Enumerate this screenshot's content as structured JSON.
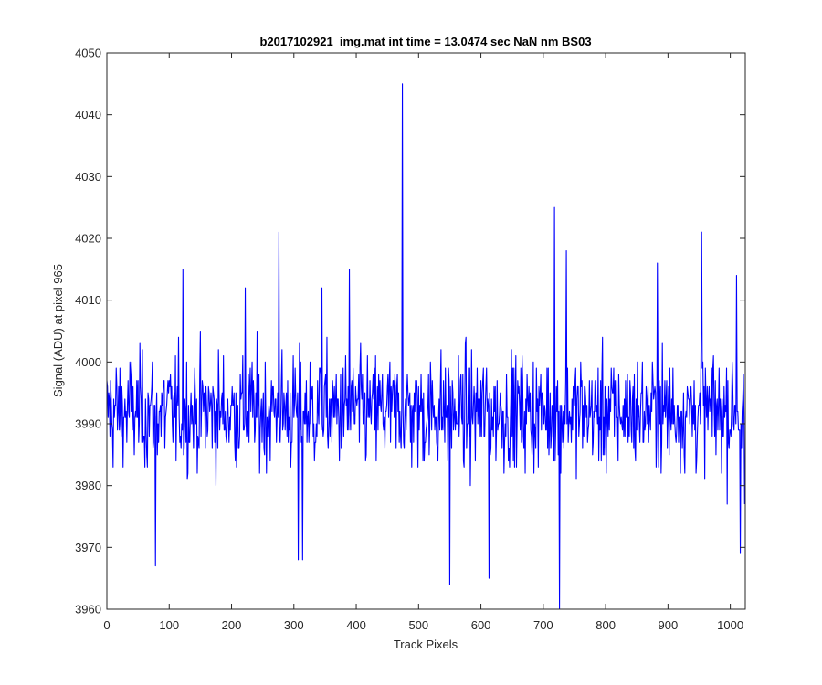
{
  "chart_data": {
    "type": "line",
    "title": "b2017102921_img.mat int time = 13.0474 sec  NaN nm BS03",
    "xlabel": "Track Pixels",
    "ylabel": "Signal (ADU) at pixel 965",
    "xlim": [
      0,
      1024
    ],
    "ylim": [
      3960,
      4050
    ],
    "xticks": [
      0,
      100,
      200,
      300,
      400,
      500,
      600,
      700,
      800,
      900,
      1000
    ],
    "yticks": [
      3960,
      3970,
      3980,
      3990,
      4000,
      4010,
      4020,
      4030,
      4040,
      4050
    ],
    "grid": false,
    "legend": "none",
    "series": [
      {
        "color": "#0000ff",
        "n_points": 1024,
        "baseline": 3990,
        "noise_range": [
          3975,
          4008
        ],
        "notable_points": [
          {
            "x": 0,
            "y": 3997
          },
          {
            "x": 78,
            "y": 3967
          },
          {
            "x": 122,
            "y": 4015
          },
          {
            "x": 222,
            "y": 4012
          },
          {
            "x": 276,
            "y": 4021
          },
          {
            "x": 307,
            "y": 3968
          },
          {
            "x": 314,
            "y": 3968
          },
          {
            "x": 345,
            "y": 4012
          },
          {
            "x": 389,
            "y": 4015
          },
          {
            "x": 474,
            "y": 4045
          },
          {
            "x": 550,
            "y": 3964
          },
          {
            "x": 613,
            "y": 3965
          },
          {
            "x": 718,
            "y": 4025
          },
          {
            "x": 726,
            "y": 3960
          },
          {
            "x": 737,
            "y": 4018
          },
          {
            "x": 883,
            "y": 4016
          },
          {
            "x": 954,
            "y": 4021
          },
          {
            "x": 1010,
            "y": 4014
          },
          {
            "x": 1016,
            "y": 3969
          },
          {
            "x": 1023,
            "y": 3977
          }
        ]
      }
    ]
  }
}
